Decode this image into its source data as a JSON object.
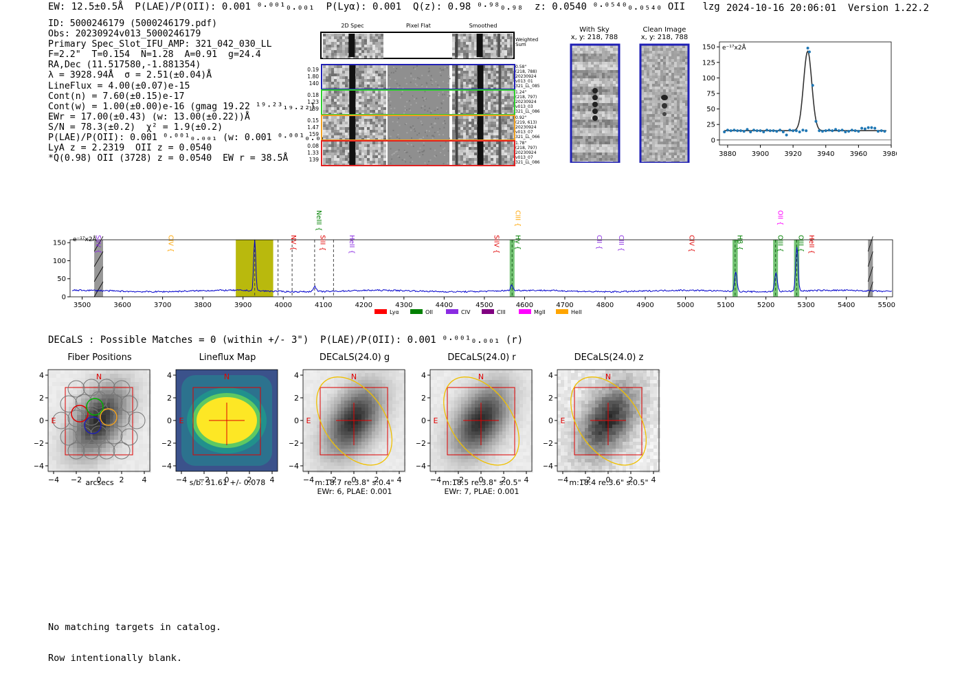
{
  "header": {
    "left": "EW: 12.5±0.5Å  P(LAE)/P(OII): 0.001 ⁰·⁰⁰¹₀.₀₀₁  P(Lyα): 0.001  Q(z): 0.98 ⁰·⁹⁸₀.₉₈  z: 0.0540 ⁰·⁰⁵⁴⁰₀.₀₅₄₀ OII   lzg",
    "right": "2024-10-16 20:06:01  Version 1.22.2"
  },
  "info_lines": [
    "ID: 5000246179 (5000246179.pdf)",
    "Obs: 20230924v013_5000246179",
    "Primary Spec_Slot_IFU_AMP: 321_042_030_LL",
    "F=2.2\"  T=0.154  N=1.28  A=0.91  g=24.4",
    "RA,Dec (11.517580,-1.881354)",
    "λ = 3928.94Å  σ = 2.51(±0.04)Å",
    "LineFlux = 4.00(±0.07)e-15",
    "Cont(n) = 7.60(±0.15)e-17",
    "Cont(w) = 1.00(±0.00)e-16 (gmag 19.22 ¹⁹·²³₁₉.₂₂)",
    "EWr = 17.00(±0.43) (w: 13.00(±0.22))Å",
    "S/N = 78.3(±0.2)  χ² = 1.9(±0.2)",
    "P(LAE)/P(OII): 0.001 ⁰·⁰⁰¹₀.₀₀₁ (w: 0.001 ⁰·⁰⁰¹₀.₀₀₁)",
    "LyA z = 2.2319  OII z = 0.0540",
    "*Q(0.98) OII (3728) z = 0.0540  EW r = 38.5Å"
  ],
  "spec2d": {
    "headers": [
      "2D Spec",
      "Pixel Flat",
      "Smoothed"
    ],
    "weighted_label": "Weighted\nSum",
    "rows": [
      {
        "nums": "0.19\n1.80\n140",
        "label": "0.58\"\n(218, 788)\n20230924\nv013_01\n321_LL_085",
        "color": "#1f1fb4"
      },
      {
        "nums": "0.18\n1.23\n139",
        "label": "1.24\"\n(218, 797)\n20230924\nv013_03\n321_LL_086",
        "color": "#2ecc2e"
      },
      {
        "nums": "0.15\n1.47\n159",
        "label": "0.92\"\n(219, 613)\n20230924\nv013_07\n321_LL_066",
        "color": "#f0a020"
      },
      {
        "nums": "0.08\n1.33\n139",
        "label": "1.78\"\n(218, 797)\n20230924\nv013_07\n321_LL_086",
        "color": "#e02020"
      }
    ]
  },
  "sky_panels": [
    {
      "title": "With Sky",
      "coords": "x, y: 218, 788"
    },
    {
      "title": "Clean Image",
      "coords": "x, y: 218, 788"
    }
  ],
  "zoom_chart": {
    "ylabel": "e⁻¹⁷x2Å"
  },
  "chart_data": [
    {
      "type": "scatter",
      "title": "",
      "xlabel": "",
      "ylabel": "e⁻¹⁷x2Å",
      "xlim": [
        3875,
        3980
      ],
      "ylim": [
        -8,
        158
      ],
      "xticks": [
        3880,
        3900,
        3920,
        3940,
        3960,
        3980
      ],
      "yticks": [
        0,
        25,
        50,
        75,
        100,
        125,
        150
      ],
      "x": [
        3878,
        3880,
        3882,
        3884,
        3886,
        3888,
        3890,
        3892,
        3894,
        3896,
        3898,
        3900,
        3902,
        3904,
        3906,
        3908,
        3910,
        3912,
        3914,
        3916,
        3918,
        3920,
        3922,
        3924,
        3926,
        3928,
        3929,
        3930,
        3932,
        3934,
        3936,
        3938,
        3940,
        3942,
        3944,
        3946,
        3948,
        3950,
        3952,
        3954,
        3956,
        3958,
        3960,
        3962,
        3964,
        3966,
        3968,
        3970,
        3972,
        3974,
        3976
      ],
      "y": [
        13,
        16,
        15,
        16,
        15,
        15,
        14,
        17,
        13,
        16,
        15,
        15,
        13,
        16,
        15,
        15,
        14,
        16,
        13,
        8,
        16,
        15,
        15,
        13,
        16,
        15,
        148,
        142,
        88,
        30,
        15,
        14,
        15,
        16,
        15,
        17,
        15,
        16,
        13,
        14,
        16,
        15,
        14,
        19,
        18,
        20,
        20,
        19,
        14,
        15,
        14
      ],
      "fit": {
        "center": 3928.94,
        "sigma": 2.51,
        "amplitude": 128,
        "continuum": 15
      }
    },
    {
      "type": "line",
      "title": "",
      "xlabel": "",
      "ylabel": "e⁻¹⁷x2Å",
      "xlim": [
        3470,
        5515
      ],
      "ylim": [
        0,
        158
      ],
      "xticks": [
        3500,
        3600,
        3700,
        3800,
        3900,
        4000,
        4100,
        4200,
        4300,
        4400,
        4500,
        4600,
        4700,
        4800,
        4900,
        5000,
        5100,
        5200,
        5300,
        5400,
        5500
      ],
      "yticks": [
        0,
        50,
        100,
        150
      ],
      "continuum": 16,
      "peaks": [
        {
          "x": 3929,
          "height": 150,
          "sigma": 2.5
        },
        {
          "x": 4078,
          "height": 14,
          "sigma": 4
        },
        {
          "x": 4568,
          "height": 15,
          "sigma": 3
        },
        {
          "x": 5125,
          "height": 56,
          "sigma": 3
        },
        {
          "x": 5225,
          "height": 50,
          "sigma": 3.5
        },
        {
          "x": 5277,
          "height": 122,
          "sigma": 3
        }
      ],
      "highlight_regions": [
        {
          "x0": 3530,
          "x1": 3552,
          "kind": "mask"
        },
        {
          "x0": 3882,
          "x1": 3975,
          "kind": "fit-window"
        },
        {
          "x0": 4563,
          "x1": 4575,
          "kind": "line"
        },
        {
          "x0": 5117,
          "x1": 5130,
          "kind": "line"
        },
        {
          "x0": 5218,
          "x1": 5230,
          "kind": "line"
        },
        {
          "x0": 5270,
          "x1": 5283,
          "kind": "line"
        },
        {
          "x0": 5454,
          "x1": 5466,
          "kind": "mask"
        }
      ],
      "dashed_lines": [
        3929,
        3987,
        4022,
        4078,
        4125
      ],
      "line_labels": [
        {
          "name": "SiIV",
          "x": 3530,
          "color": "#8a2be2",
          "row": 1
        },
        {
          "name": "CIV",
          "x": 3710,
          "color": "#ffa500",
          "row": 1
        },
        {
          "name": "NV",
          "x": 4015,
          "color": "#e00000",
          "row": 1
        },
        {
          "name": "NeIII",
          "x": 4078,
          "color": "#008000",
          "row": 0
        },
        {
          "name": "SiII",
          "x": 4088,
          "color": "#e00000",
          "row": 1
        },
        {
          "name": "HeII",
          "x": 4160,
          "color": "#8a2be2",
          "row": 1
        },
        {
          "name": "SiIV",
          "x": 4520,
          "color": "#e00000",
          "row": 1
        },
        {
          "name": "CIII",
          "x": 4573,
          "color": "#ffa500",
          "row": 0
        },
        {
          "name": "Hγ",
          "x": 4573,
          "color": "#008000",
          "row": 1
        },
        {
          "name": "CII",
          "x": 4775,
          "color": "#8a2be2",
          "row": 1
        },
        {
          "name": "CIII",
          "x": 4830,
          "color": "#8a2be2",
          "row": 1
        },
        {
          "name": "CIV",
          "x": 5005,
          "color": "#e00000",
          "row": 1
        },
        {
          "name": "Hβ",
          "x": 5125,
          "color": "#008000",
          "row": 1
        },
        {
          "name": "OII",
          "x": 5225,
          "color": "#ff00ff",
          "row": 0
        },
        {
          "name": "OIII",
          "x": 5225,
          "color": "#008000",
          "row": 1
        },
        {
          "name": "OIII",
          "x": 5277,
          "color": "#008000",
          "row": 1
        },
        {
          "name": "HeII",
          "x": 5303,
          "color": "#e00000",
          "row": 1
        }
      ],
      "legend": [
        {
          "name": "Lyα",
          "color": "#ff0000"
        },
        {
          "name": "OII",
          "color": "#008000"
        },
        {
          "name": "CIV",
          "color": "#8a2be2"
        },
        {
          "name": "CIII",
          "color": "#800080"
        },
        {
          "name": "MgII",
          "color": "#ff00ff"
        },
        {
          "name": "HeII",
          "color": "#ffa500"
        }
      ]
    }
  ],
  "decals_line": "DECaLS : Possible Matches = 0 (within +/- 3\")  P(LAE)/P(OII): 0.001 ⁰·⁰⁰¹₀.₀₀₁ (r)",
  "mini_panels": [
    {
      "title": "Fiber Positions",
      "cap1": "arcsecs",
      "cap2": ""
    },
    {
      "title": "Lineflux Map",
      "cap1": "s/b: 31.61 +/- 0.078",
      "cap2": ""
    },
    {
      "title": "DECaLS(24.0) g",
      "cap1": "m:18.7  re:3.8\"  s:0.4\"",
      "cap2": "EWr: 6, PLAE: 0.001"
    },
    {
      "title": "DECaLS(24.0) r",
      "cap1": "m:18.5  re:3.8\"  s:0.5\"",
      "cap2": "EWr: 7, PLAE: 0.001"
    },
    {
      "title": "DECaLS(24.0) z",
      "cap1": "m:18.4  re:3.6\"  s:0.5\"",
      "cap2": ""
    }
  ],
  "mini_axes": {
    "ticks": [
      "4",
      "2",
      "0",
      "−2",
      "−4"
    ],
    "xticks": [
      "−4",
      "−2",
      "0",
      "2",
      "4"
    ],
    "north": "N",
    "east": "E"
  },
  "footer": [
    "No matching targets in catalog.",
    "Row intentionally blank."
  ]
}
